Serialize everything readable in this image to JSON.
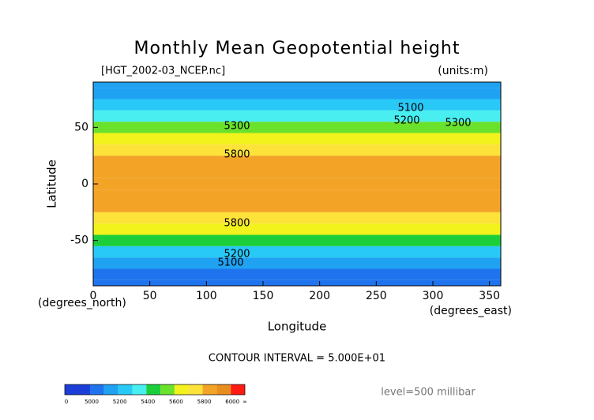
{
  "chart_data": {
    "type": "contour",
    "title": "Monthly Mean Geopotential height",
    "file_label": "[HGT_2002-03_NCEP.nc]",
    "units_label": "(units:m)",
    "x_label": "Longitude",
    "y_label": "Latitude",
    "x_unit_label": "(degrees_east)",
    "y_unit_label": "(degrees_north)",
    "contour_interval_label": "CONTOUR INTERVAL = 5.000E+01",
    "level_label": "level=500 millibar",
    "xlim": [
      0,
      360
    ],
    "xticks": [
      0,
      50,
      100,
      150,
      200,
      250,
      300,
      350
    ],
    "ylim": [
      -90,
      90
    ],
    "yticks": [
      -50,
      0,
      50
    ],
    "latitudes": [
      -90,
      -80,
      -70,
      -60,
      -50,
      -40,
      -30,
      -20,
      -10,
      0,
      10,
      20,
      30,
      40,
      50,
      60,
      70,
      80,
      90
    ],
    "values": [
      5060,
      5080,
      5120,
      5250,
      5450,
      5640,
      5790,
      5860,
      5870,
      5870,
      5870,
      5850,
      5780,
      5650,
      5500,
      5350,
      5200,
      5150,
      5100
    ],
    "contour_labels": [
      5100,
      5200,
      5300,
      5300,
      5800,
      5800,
      5200,
      5100
    ],
    "colorbar": {
      "levels": [
        0,
        5000,
        5100,
        5200,
        5300,
        5400,
        5500,
        5600,
        5700,
        5800,
        5900,
        6000
      ],
      "colors": [
        "#1c3ed8",
        "#1f74ee",
        "#1fa2f2",
        "#28c9f6",
        "#48eef0",
        "#1ccf3a",
        "#6ae22c",
        "#f2f21c",
        "#fde23a",
        "#f3a427",
        "#e98e1e",
        "#ff1a12"
      ],
      "ticks": [
        0,
        5000,
        5200,
        5400,
        5600,
        5800,
        6000
      ],
      "end_label": "∞"
    }
  }
}
